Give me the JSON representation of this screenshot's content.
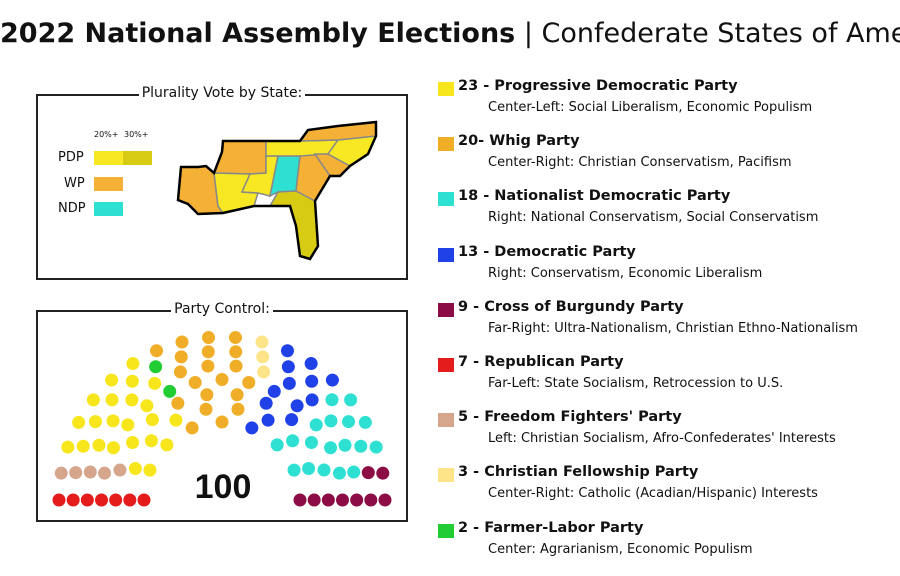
{
  "title": {
    "bold": "2022 National Assembly Elections",
    "sep": " | ",
    "rest": "Confederate States of America"
  },
  "map": {
    "title": "Plurality Vote by State:",
    "legend_headers": [
      "20%+",
      "30%+"
    ],
    "legend": [
      {
        "label": "PDP",
        "colors": [
          "#f7e823",
          "#d7cb14"
        ]
      },
      {
        "label": "WP",
        "colors": [
          "#f4b136"
        ]
      },
      {
        "label": "NDP",
        "colors": [
          "#2ee0d2"
        ]
      }
    ]
  },
  "control": {
    "title": "Party Control:",
    "total": "100"
  },
  "parties": [
    {
      "name": "23 - Progressive Democratic Party",
      "desc": "Center-Left: Social Liberalism, Economic Populism",
      "color": "#f7e61c"
    },
    {
      "name": "20- Whig Party",
      "desc": "Center-Right: Christian Conservatism, Pacifism",
      "color": "#f0ad28"
    },
    {
      "name": "18 - Nationalist Democratic Party",
      "desc": "Right: National Conservatism, Social Conservatism",
      "color": "#2ee0d2"
    },
    {
      "name": "13 - Democratic Party",
      "desc": "Right: Conservatism, Economic Liberalism",
      "color": "#2040e8"
    },
    {
      "name": "9 - Cross of Burgundy Party",
      "desc": "Far-Right: Ultra-Nationalism, Christian Ethno-Nationalism",
      "color": "#8c0d45"
    },
    {
      "name": "7 - Republican Party",
      "desc": "Far-Left: State Socialism, Retrocession to U.S.",
      "color": "#e41c1c"
    },
    {
      "name": "5 - Freedom Fighters' Party",
      "desc": "Left: Christian Socialism, Afro-Confederates' Interests",
      "color": "#d6a68c"
    },
    {
      "name": "3 - Christian Fellowship Party",
      "desc": "Center-Right: Catholic (Acadian/Hispanic) Interests",
      "color": "#fde488"
    },
    {
      "name": "2 - Farmer-Labor Party",
      "desc": "Center: Agrarianism, Economic Populism",
      "color": "#22cc33"
    }
  ],
  "chart_data": {
    "type": "parliament",
    "total": 100,
    "series": [
      {
        "name": "Republican Party",
        "value": 7,
        "color": "#e41c1c"
      },
      {
        "name": "Freedom Fighters' Party",
        "value": 5,
        "color": "#d6a68c"
      },
      {
        "name": "Progressive Democratic Party",
        "value": 23,
        "color": "#f7e61c"
      },
      {
        "name": "Farmer-Labor Party",
        "value": 2,
        "color": "#22cc33"
      },
      {
        "name": "Whig Party",
        "value": 20,
        "color": "#f0ad28"
      },
      {
        "name": "Christian Fellowship Party",
        "value": 3,
        "color": "#fde488"
      },
      {
        "name": "Democratic Party",
        "value": 13,
        "color": "#2040e8"
      },
      {
        "name": "Nationalist Democratic Party",
        "value": 18,
        "color": "#2ee0d2"
      },
      {
        "name": "Cross of Burgundy Party",
        "value": 9,
        "color": "#8c0d45"
      }
    ]
  }
}
